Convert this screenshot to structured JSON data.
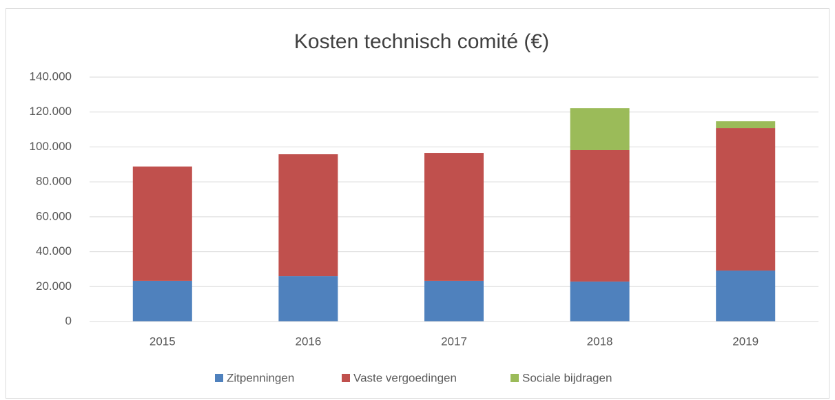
{
  "chart_data": {
    "type": "stacked_bar",
    "title": "Kosten technisch comité (€)",
    "categories": [
      "2015",
      "2016",
      "2017",
      "2018",
      "2019"
    ],
    "series": [
      {
        "name": "Zitpenningen",
        "color": "#4f81bd",
        "values": [
          23300,
          26000,
          23300,
          22900,
          29200
        ]
      },
      {
        "name": "Vaste vergoedingen",
        "color": "#c0504d",
        "values": [
          65500,
          69800,
          73300,
          75300,
          81600
        ]
      },
      {
        "name": "Sociale bijdragen",
        "color": "#9bbb59",
        "values": [
          0,
          0,
          0,
          24000,
          3900
        ]
      }
    ],
    "ylim": [
      0,
      140000
    ],
    "yticks": [
      0,
      {
        "value": 20000,
        "label": "20.000"
      },
      {
        "value": 40000,
        "label": "40.000"
      },
      {
        "value": 60000,
        "label": "60.000"
      },
      {
        "value": 80000,
        "label": "80.000"
      },
      {
        "value": 100000,
        "label": "100.000"
      },
      {
        "value": 120000,
        "label": "120.000"
      },
      {
        "value": 140000,
        "label": "140.000"
      }
    ],
    "grid": true,
    "legend": "bottom"
  }
}
